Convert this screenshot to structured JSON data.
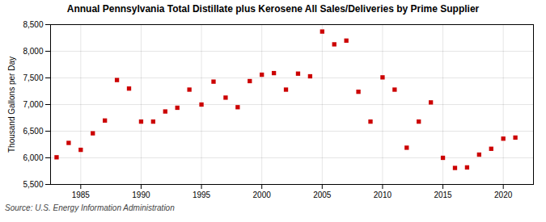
{
  "chart_data": {
    "type": "scatter",
    "title": "Annual Pennsylvania Total Distillate plus Kerosene All Sales/Deliveries by Prime Supplier",
    "ylabel": "Thousand Gallons per Day",
    "source": "Source: U.S. Energy Information Administration",
    "color": "#cc0000",
    "marker": "square",
    "grid": true,
    "x": [
      1983,
      1984,
      1985,
      1986,
      1987,
      1988,
      1989,
      1990,
      1991,
      1992,
      1993,
      1994,
      1995,
      1996,
      1997,
      1998,
      1999,
      2000,
      2001,
      2002,
      2003,
      2004,
      2005,
      2006,
      2007,
      2008,
      2009,
      2010,
      2011,
      2012,
      2013,
      2014,
      2015,
      2016,
      2017,
      2018,
      2019,
      2020,
      2021
    ],
    "values": [
      6010,
      6280,
      6150,
      6460,
      6700,
      7460,
      7300,
      6680,
      6680,
      6870,
      6940,
      7280,
      7000,
      7430,
      7130,
      6950,
      7440,
      7560,
      7590,
      7280,
      7580,
      7530,
      8370,
      8130,
      8200,
      7240,
      6680,
      7510,
      7280,
      6190,
      6680,
      7040,
      6000,
      5810,
      5820,
      6060,
      6170,
      6360,
      6380
    ],
    "xlim": [
      1982.5,
      2022.5
    ],
    "xticks": [
      1985,
      1990,
      1995,
      2000,
      2005,
      2010,
      2015,
      2020
    ],
    "ylim": [
      5500,
      8500
    ],
    "yticks": [
      {
        "value": 5500,
        "label": "5,500"
      },
      {
        "value": 6000,
        "label": "6,000"
      },
      {
        "value": 6500,
        "label": "6,500"
      },
      {
        "value": 7000,
        "label": "7,000"
      },
      {
        "value": 7500,
        "label": "7,500"
      },
      {
        "value": 8000,
        "label": "8,000"
      },
      {
        "value": 8500,
        "label": "8,500"
      }
    ]
  }
}
